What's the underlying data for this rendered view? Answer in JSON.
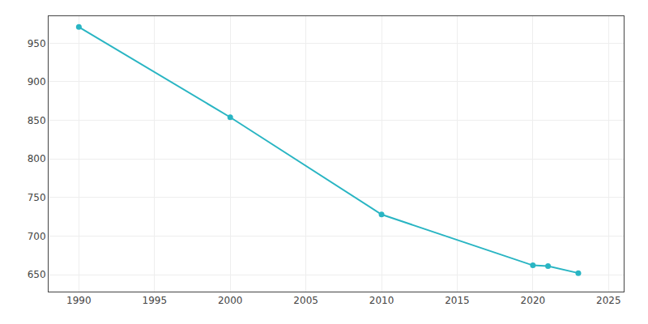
{
  "chart_data": {
    "type": "line",
    "x": [
      1990,
      2000,
      2010,
      2020,
      2021,
      2023
    ],
    "values": [
      971,
      854,
      728,
      662,
      661,
      652
    ],
    "color": "#29b5c3",
    "marker": "circle",
    "grid": true,
    "xlim": [
      1988,
      2026
    ],
    "ylim": [
      628,
      985
    ],
    "xticks": [
      1990,
      1995,
      2000,
      2005,
      2010,
      2015,
      2020,
      2025
    ],
    "yticks": [
      650,
      700,
      750,
      800,
      850,
      900,
      950
    ]
  }
}
